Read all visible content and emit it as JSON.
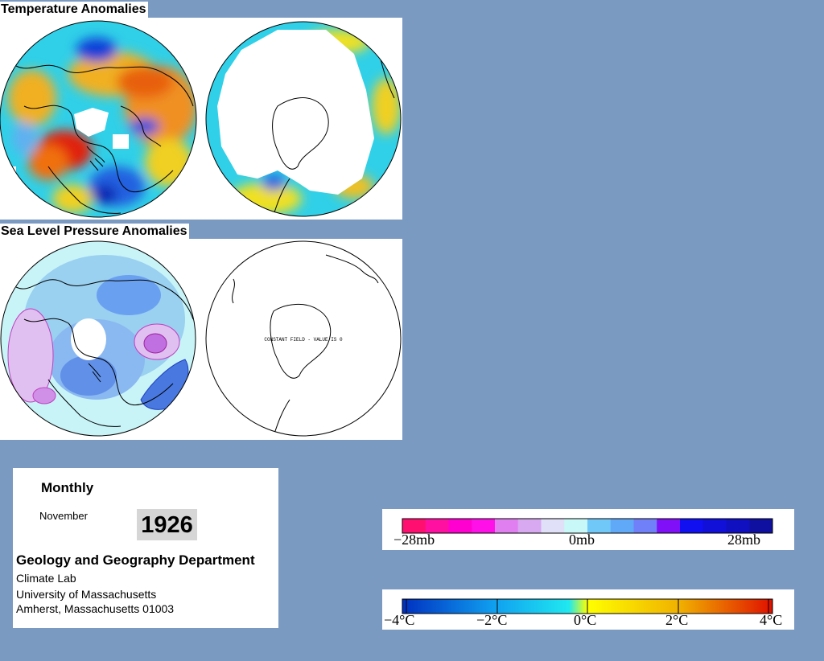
{
  "temperature": {
    "title": "Temperature Anomalies",
    "hemispheres": [
      "northern",
      "southern"
    ]
  },
  "sea_level_pressure": {
    "title": "Sea Level Pressure Anomalies",
    "southern_label": "CONSTANT FIELD - VALUE IS 0"
  },
  "info": {
    "frequency": "Monthly",
    "month": "November",
    "year": "1926",
    "department": "Geology and Geography Department",
    "lab": "Climate Lab",
    "university": "University of Massachusetts",
    "city": "Amherst, Massachusetts 01003"
  },
  "pressure_legend": {
    "labels": [
      "−28mb",
      "0mb",
      "28mb"
    ],
    "colors": [
      "#ff1070",
      "#ff10a0",
      "#ff00d0",
      "#ff10e8",
      "#e080f0",
      "#d8a8f0",
      "#e0e0f8",
      "#c8f8f8",
      "#70c8f8",
      "#60a8f8",
      "#7080f8",
      "#8010f8",
      "#1010f0",
      "#1010d8",
      "#1010c0",
      "#1010a0"
    ]
  },
  "temperature_legend": {
    "labels": [
      "−4°C",
      "−2°C",
      "0°C",
      "2°C",
      "4°C"
    ],
    "colors": {
      "cold_end": "#0030c0",
      "zero": "#ffff00",
      "warm_end": "#e01000"
    }
  }
}
